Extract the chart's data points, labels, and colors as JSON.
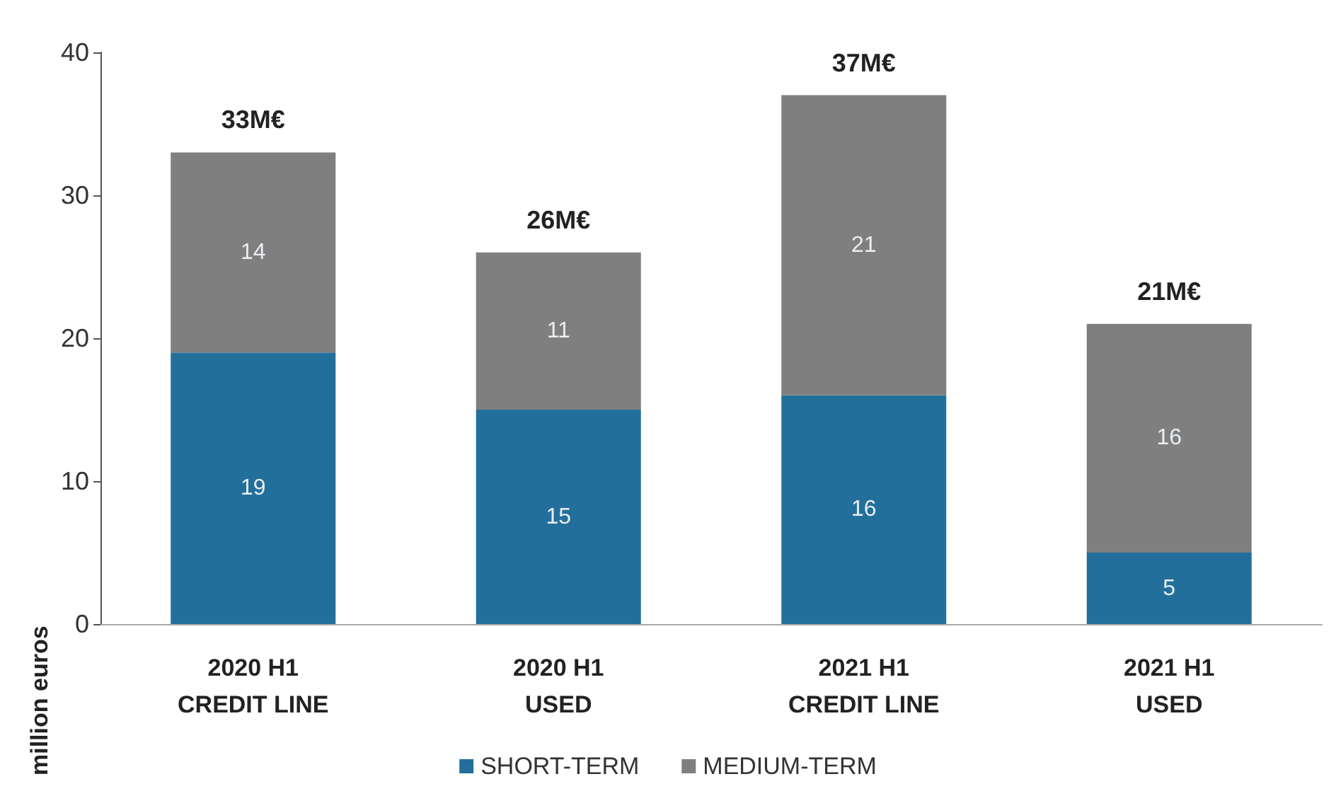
{
  "chart_data": {
    "type": "bar",
    "stacked": true,
    "ylabel": "million euros",
    "categories": [
      "2020 H1\nCREDIT LINE",
      "2020 H1\nUSED",
      "2021 H1\nCREDIT LINE",
      "2021 H1\nUSED"
    ],
    "series": [
      {
        "name": "SHORT-TERM",
        "color": "#236f9b",
        "values": [
          19,
          15,
          16,
          5
        ]
      },
      {
        "name": "MEDIUM-TERM",
        "color": "#7f7f7f",
        "values": [
          14,
          11,
          21,
          16
        ]
      }
    ],
    "totals": [
      "33M€",
      "26M€",
      "37M€",
      "21M€"
    ],
    "data_labels": true,
    "ylim": [
      0,
      40
    ],
    "yticks": [
      0,
      10,
      20,
      30,
      40
    ],
    "grid": false,
    "legend": "bottom"
  }
}
